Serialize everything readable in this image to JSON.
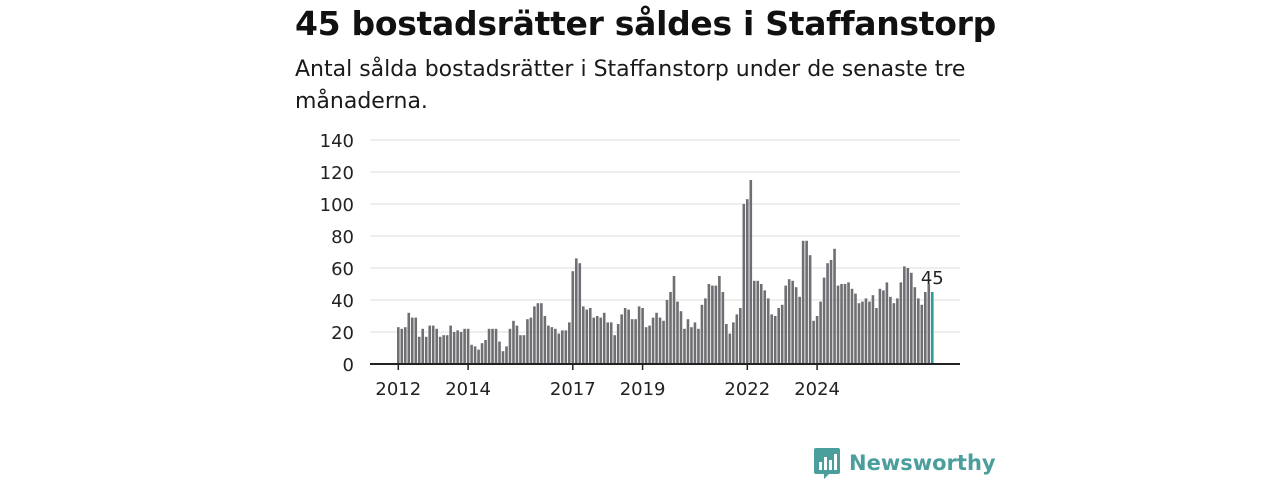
{
  "headline": "45 bostadsrätter såldes i Staffanstorp",
  "subtitle": "Antal sålda bostadsrätter i Staffanstorp under de senaste tre månaderna.",
  "brand": {
    "name": "Newsworthy",
    "icon": "newsworthy-logo-icon",
    "color": "#4a9e9c"
  },
  "chart_data": {
    "type": "bar",
    "title": "",
    "xlabel": "",
    "ylabel": "",
    "ylim": [
      0,
      140
    ],
    "yticks": [
      0,
      20,
      40,
      60,
      80,
      100,
      120,
      140
    ],
    "grid": true,
    "legend": "none",
    "colors": {
      "bar": "#6e6e73",
      "highlight": "#2a9d9a",
      "grid": "#dddddd",
      "axis": "#222222"
    },
    "xtick_labels": [
      {
        "label": "2012",
        "index": 0
      },
      {
        "label": "2014",
        "index": 20
      },
      {
        "label": "2017",
        "index": 50
      },
      {
        "label": "2019",
        "index": 70
      },
      {
        "label": "2022",
        "index": 100
      },
      {
        "label": "2024",
        "index": 120
      }
    ],
    "start": "2011-12",
    "values": [
      23,
      22,
      23,
      32,
      29,
      29,
      17,
      22,
      17,
      24,
      24,
      22,
      17,
      18,
      18,
      24,
      20,
      21,
      20,
      22,
      22,
      12,
      11,
      9,
      13,
      15,
      22,
      22,
      22,
      14,
      8,
      11,
      22,
      27,
      24,
      18,
      18,
      28,
      29,
      36,
      38,
      38,
      30,
      24,
      23,
      22,
      19,
      21,
      21,
      26,
      58,
      66,
      63,
      36,
      34,
      35,
      29,
      30,
      29,
      32,
      26,
      26,
      18,
      25,
      31,
      35,
      34,
      28,
      28,
      36,
      35,
      23,
      24,
      29,
      32,
      29,
      27,
      40,
      45,
      55,
      39,
      33,
      22,
      28,
      23,
      26,
      22,
      37,
      41,
      50,
      49,
      49,
      55,
      45,
      25,
      19,
      26,
      31,
      35,
      100,
      103,
      115,
      52,
      52,
      50,
      46,
      41,
      31,
      30,
      35,
      37,
      49,
      53,
      52,
      48,
      42,
      77,
      77,
      68,
      27,
      30,
      39,
      54,
      63,
      65,
      72,
      49,
      50,
      50,
      51,
      47,
      44,
      38,
      39,
      41,
      39,
      43,
      35,
      47,
      46,
      51,
      42,
      38,
      41,
      51,
      61,
      60,
      57,
      48,
      41,
      37,
      45,
      50,
      45
    ],
    "highlight": {
      "index": 153,
      "value": 45,
      "label": "45"
    }
  }
}
